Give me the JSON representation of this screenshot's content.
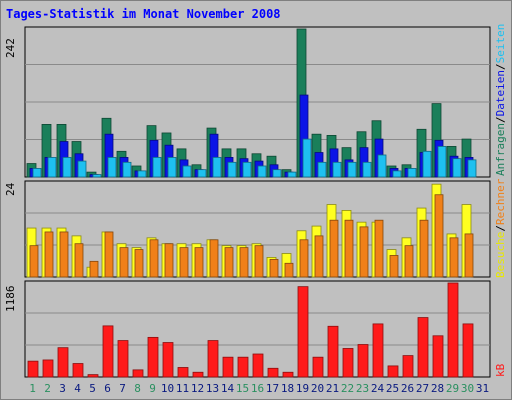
{
  "title": "Tages-Statistik im Monat November 2008",
  "colors": {
    "anfragen": "#1a7f5a",
    "dateien": "#0a14e6",
    "seiten": "#1ec0f0",
    "besuche": "#ffff20",
    "rechner": "#f08018",
    "kb": "#ff1a1a",
    "weekend": "#2a9060",
    "weekday": "#0a1a80"
  },
  "legend": {
    "top": [
      {
        "label": "Anfragen",
        "color": "#1a7f5a"
      },
      {
        "label": "Dateien",
        "color": "#0a14e6"
      },
      {
        "label": "Seiten",
        "color": "#1ec0f0"
      }
    ],
    "middle": [
      {
        "label": "Besuche",
        "color": "#e8e800"
      },
      {
        "label": "Rechner",
        "color": "#f08018"
      }
    ],
    "bottom": [
      {
        "label": "kB",
        "color": "#ff1a1a"
      }
    ]
  },
  "chart_data": [
    {
      "type": "bar",
      "title": "",
      "ymax_label": "242",
      "ylim": [
        0,
        242
      ],
      "categories": [
        "1",
        "2",
        "3",
        "4",
        "5",
        "6",
        "7",
        "8",
        "9",
        "10",
        "11",
        "12",
        "13",
        "14",
        "15",
        "16",
        "17",
        "18",
        "19",
        "20",
        "21",
        "22",
        "23",
        "24",
        "25",
        "26",
        "27",
        "28",
        "29",
        "30",
        "31"
      ],
      "series": [
        {
          "name": "Anfragen",
          "values": [
            22,
            86,
            86,
            58,
            8,
            96,
            42,
            18,
            84,
            72,
            46,
            20,
            80,
            46,
            46,
            38,
            34,
            12,
            242,
            70,
            68,
            48,
            74,
            92,
            18,
            20,
            78,
            120,
            50,
            62,
            0
          ]
        },
        {
          "name": "Dateien",
          "values": [
            14,
            32,
            58,
            38,
            4,
            70,
            32,
            10,
            60,
            52,
            28,
            12,
            70,
            32,
            30,
            26,
            20,
            8,
            134,
            40,
            46,
            28,
            48,
            62,
            14,
            14,
            40,
            60,
            34,
            32,
            0
          ]
        },
        {
          "name": "Seiten",
          "values": [
            14,
            32,
            32,
            26,
            4,
            32,
            24,
            10,
            32,
            32,
            18,
            12,
            32,
            24,
            24,
            18,
            12,
            8,
            62,
            24,
            24,
            24,
            24,
            36,
            10,
            14,
            42,
            50,
            30,
            28,
            0
          ]
        }
      ]
    },
    {
      "type": "bar",
      "title": "",
      "ymax_label": "24",
      "ylim": [
        0,
        24
      ],
      "categories": [
        "1",
        "2",
        "3",
        "4",
        "5",
        "6",
        "7",
        "8",
        "9",
        "10",
        "11",
        "12",
        "13",
        "14",
        "15",
        "16",
        "17",
        "18",
        "19",
        "20",
        "21",
        "22",
        "23",
        "24",
        "25",
        "26",
        "27",
        "28",
        "29",
        "30",
        "31"
      ],
      "series": [
        {
          "name": "Besuche",
          "values": [
            12.5,
            12.5,
            12.5,
            10.5,
            2.5,
            11.5,
            8.5,
            7.5,
            10,
            8.5,
            8.5,
            8.5,
            9.5,
            8,
            8,
            8.5,
            5,
            6,
            11.8,
            13,
            18.5,
            17,
            14,
            14,
            7,
            10,
            17.6,
            23.7,
            11,
            18.5,
            0
          ]
        },
        {
          "name": "Rechner",
          "values": [
            8,
            11.5,
            11.5,
            8.5,
            4,
            11.5,
            7.5,
            7,
            9.5,
            8.5,
            7.5,
            7.5,
            9.5,
            7.5,
            7.5,
            8,
            4.5,
            3.5,
            9.5,
            10.5,
            14.5,
            14.5,
            12.8,
            14.5,
            5.5,
            8,
            14.5,
            21,
            10,
            11,
            0
          ]
        }
      ]
    },
    {
      "type": "bar",
      "title": "",
      "ymax_label": "1186",
      "ylim": [
        0,
        1186
      ],
      "categories": [
        "1",
        "2",
        "3",
        "4",
        "5",
        "6",
        "7",
        "8",
        "9",
        "10",
        "11",
        "12",
        "13",
        "14",
        "15",
        "16",
        "17",
        "18",
        "19",
        "20",
        "21",
        "22",
        "23",
        "24",
        "25",
        "26",
        "27",
        "28",
        "29",
        "30",
        "31"
      ],
      "series": [
        {
          "name": "kB",
          "values": [
            200,
            215,
            370,
            170,
            30,
            645,
            460,
            90,
            500,
            435,
            120,
            60,
            460,
            250,
            250,
            290,
            110,
            60,
            1140,
            250,
            640,
            360,
            410,
            670,
            140,
            270,
            750,
            520,
            1186,
            670,
            0
          ]
        }
      ]
    }
  ],
  "x_labels": {
    "values": [
      "1",
      "2",
      "3",
      "4",
      "5",
      "6",
      "7",
      "8",
      "9",
      "10",
      "11",
      "12",
      "13",
      "14",
      "15",
      "16",
      "17",
      "18",
      "19",
      "20",
      "21",
      "22",
      "23",
      "24",
      "25",
      "26",
      "27",
      "28",
      "29",
      "30",
      "31"
    ],
    "weekend": [
      "1",
      "2",
      "8",
      "9",
      "15",
      "16",
      "22",
      "23",
      "29",
      "30"
    ]
  }
}
